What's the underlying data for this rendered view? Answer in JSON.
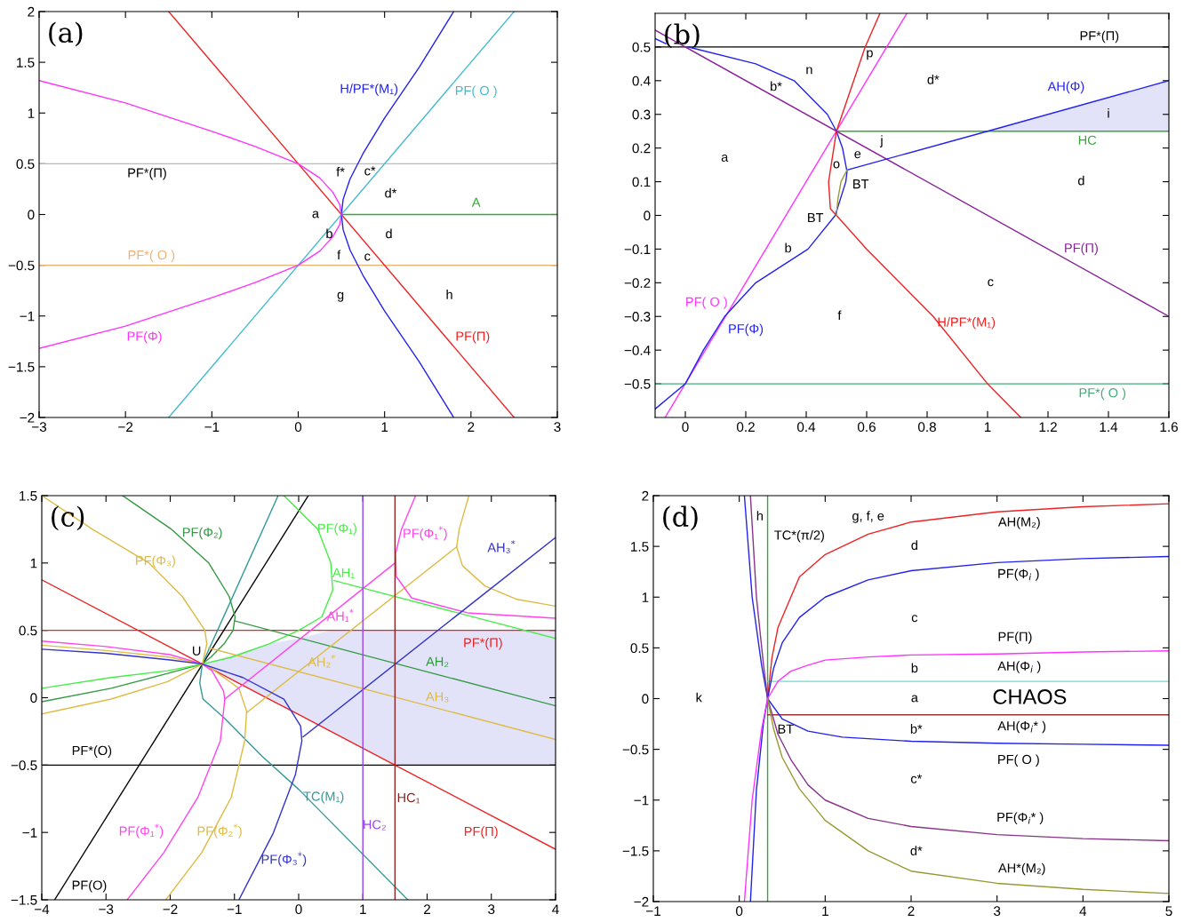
{
  "chart_data": [
    {
      "type": "line",
      "title": "(a)",
      "xlim": [
        -3,
        3
      ],
      "ylim": [
        -2,
        2
      ],
      "xticks": [
        -3,
        -2,
        -1,
        0,
        1,
        2,
        3
      ],
      "yticks": [
        -2,
        -1.5,
        -1,
        -0.5,
        0,
        0.5,
        1,
        1.5,
        2
      ],
      "series": [
        {
          "color": "#bbbbbb",
          "x": [
            -3,
            3
          ],
          "values": [
            0.5,
            0.5
          ]
        },
        {
          "name": "PF*( O )",
          "color": "#f2b070",
          "x": [
            -3,
            3
          ],
          "values": [
            -0.5,
            -0.5
          ]
        },
        {
          "name": "A",
          "color": "#33aa33",
          "x": [
            0.5,
            3
          ],
          "values": [
            0,
            0
          ]
        },
        {
          "name": "PF(Π)",
          "color": "#ee2222",
          "x": [
            -1.5,
            2.5
          ],
          "values": [
            2,
            -2
          ]
        },
        {
          "name": "PF( O )",
          "color": "#44bbcc",
          "x": [
            -1.5,
            2.5
          ],
          "values": [
            -2,
            2
          ]
        },
        {
          "name": "H/PF*(M₁)",
          "color": "#2222ee",
          "x": [
            1.8,
            1.4,
            1.0,
            0.75,
            0.6,
            0.52,
            0.5,
            0.52,
            0.6,
            0.75,
            1.0,
            1.4,
            1.8
          ],
          "values": [
            2,
            1.45,
            0.95,
            0.6,
            0.35,
            0.15,
            0,
            -0.15,
            -0.35,
            -0.6,
            -0.95,
            -1.45,
            -2
          ]
        },
        {
          "name": "PF(Φ)",
          "color": "#ff33ff",
          "x": [
            -3,
            -2,
            -1,
            -0.5,
            0,
            0.25,
            0.4,
            0.48,
            0.5,
            0.48,
            0.4,
            0.25,
            0,
            -0.5,
            -1,
            -2,
            -3
          ],
          "values": [
            1.32,
            1.1,
            0.82,
            0.67,
            0.5,
            0.36,
            0.22,
            0.1,
            0,
            -0.1,
            -0.22,
            -0.36,
            -0.5,
            -0.67,
            -0.82,
            -1.1,
            -1.32
          ]
        }
      ],
      "annotations": [
        "PF*(Π)",
        "f*",
        "c*",
        "d*",
        "a",
        "b",
        "d",
        "f",
        "c",
        "g",
        "h"
      ]
    },
    {
      "type": "line",
      "title": "(b)",
      "xlim": [
        -0.1,
        1.6
      ],
      "ylim": [
        -0.6,
        0.6
      ],
      "xticks": [
        0,
        0.2,
        0.4,
        0.6,
        0.8,
        1,
        1.2,
        1.4,
        1.6
      ],
      "yticks": [
        -0.5,
        -0.4,
        -0.3,
        -0.2,
        -0.1,
        0,
        0.1,
        0.2,
        0.3,
        0.4,
        0.5
      ],
      "series": [
        {
          "name": "PF*(Π)",
          "color": "#000000",
          "x": [
            -0.1,
            1.6
          ],
          "values": [
            0.5,
            0.5
          ]
        },
        {
          "name": "PF*( O )",
          "color": "#44aa77",
          "x": [
            -0.1,
            1.6
          ],
          "values": [
            -0.5,
            -0.5
          ]
        },
        {
          "name": "HC",
          "color": "#33aa33",
          "x": [
            0.5,
            1.6
          ],
          "values": [
            0.25,
            0.25
          ]
        },
        {
          "name": "PF(Π)",
          "color": "#882299",
          "x": [
            -0.1,
            1.6
          ],
          "values": [
            0.55,
            -0.3
          ]
        },
        {
          "name": "PF( O )",
          "color": "#ff33ff",
          "x": [
            -0.067,
            0.733
          ],
          "values": [
            -0.6,
            0.6
          ]
        },
        {
          "name": "PF(Φ)",
          "color": "#2222ee",
          "x": [
            -0.1,
            0,
            0.06,
            0.13,
            0.233,
            0.406,
            0.496,
            0.531,
            0.535,
            0.52,
            0.5,
            0.47,
            0.36,
            0.233,
            0.01
          ],
          "values": [
            -0.575,
            -0.5,
            -0.4,
            -0.3,
            -0.2,
            -0.1,
            0,
            0.1,
            0.13,
            0.2,
            0.25,
            0.3,
            0.4,
            0.45,
            0.5
          ]
        },
        {
          "color": "#2222ee",
          "x": [
            -0.1,
            -0.065
          ],
          "values": [
            0.525,
            0.51
          ]
        },
        {
          "name": "AH(Φ)",
          "color": "#2222ee",
          "x": [
            0.535,
            1.0,
            1.6
          ],
          "values": [
            0.135,
            0.25,
            0.4
          ],
          "lower": [
            null,
            0.25,
            0.25
          ],
          "upper": [
            null,
            0.25,
            0.4
          ]
        },
        {
          "name": "H/PF*(M₁)",
          "color": "#ee2222",
          "x": [
            0.644,
            0.595,
            0.5,
            0.474,
            0.48,
            0.5,
            0.6,
            0.82,
            1.0,
            1.11
          ],
          "values": [
            0.6,
            0.5,
            0.25,
            0.1,
            0.02,
            0,
            -0.1,
            -0.3,
            -0.5,
            -0.6
          ]
        },
        {
          "color": "#999933",
          "x": [
            0.535,
            0.515,
            0.505,
            0.5
          ],
          "values": [
            0.135,
            0.1,
            0.05,
            0
          ]
        }
      ],
      "annotations": [
        "n",
        "p",
        "b*",
        "d*",
        "i",
        "a",
        "j",
        "e",
        "o",
        "BT",
        "d",
        "BT",
        "b",
        "c",
        "f"
      ]
    },
    {
      "type": "line",
      "title": "(c)",
      "xlim": [
        -4,
        4
      ],
      "ylim": [
        -1.5,
        1.5
      ],
      "xticks": [
        -4,
        -3,
        -2,
        -1,
        0,
        1,
        2,
        3,
        4
      ],
      "yticks": [
        -1.5,
        -1,
        -0.5,
        0,
        0.5,
        1,
        1.5
      ],
      "series": [
        {
          "name": "PF*(Π)",
          "color": "#ee2222",
          "x": [
            -4,
            4
          ],
          "values": [
            0.5,
            0.5
          ]
        },
        {
          "name": "PF*(O)",
          "color": "#000000",
          "x": [
            -4,
            4
          ],
          "values": [
            -0.5,
            -0.5
          ]
        },
        {
          "name": "PF(Π)",
          "color": "#ee2222",
          "x": [
            -4,
            -1.5,
            -1.0,
            -0.46,
            0,
            0.5,
            1.0,
            1.5,
            4
          ],
          "values": [
            0.875,
            0.25,
            0.125,
            -0.01,
            -0.125,
            -0.25,
            -0.375,
            -0.5,
            -1.125
          ],
          "lower": [
            null,
            0.25,
            0.125,
            -0.01,
            -0.125,
            -0.25,
            -0.375,
            -0.5,
            -0.5
          ],
          "upper": [
            null,
            0.25,
            0.32,
            0.4,
            0.44,
            0.5,
            0.5,
            0.5,
            0.5
          ]
        },
        {
          "name": "PF(O)",
          "color": "#000000",
          "x": [
            -3.8,
            0.15
          ],
          "values": [
            -1.5,
            1.5
          ]
        },
        {
          "name": "TC(M₁)",
          "color": "#339999",
          "x": [
            -0.32,
            -1.5,
            -1.54,
            -1.49,
            -1.16,
            -0.58,
            0.0,
            1.7
          ],
          "values": [
            1.5,
            0.25,
            0.11,
            -0.01,
            -0.15,
            -0.43,
            -0.68,
            -1.5
          ]
        },
        {
          "name": "PF(Φ₂)",
          "color": "#339944",
          "x": [
            -4,
            -2.92,
            -2.04,
            -1.5,
            -1.37,
            -1.16,
            -1.02,
            -0.99,
            -1.08,
            -1.4,
            -1.98,
            -2.74
          ],
          "values": [
            -0.03,
            0.07,
            0.18,
            0.25,
            0.3,
            0.4,
            0.5,
            0.6,
            0.75,
            1.0,
            1.25,
            1.5
          ]
        },
        {
          "name": "AH₂",
          "color": "#339944",
          "x": [
            -0.99,
            4
          ],
          "values": [
            0.57,
            -0.06
          ]
        },
        {
          "name": "PF(Φ₁)",
          "color": "#44ee44",
          "x": [
            -4,
            -2.92,
            -2.04,
            -1.5,
            -1.05,
            -0.46,
            0.0,
            0.36,
            0.53,
            0.5,
            0.3,
            -0.23
          ],
          "values": [
            0.07,
            0.15,
            0.2,
            0.25,
            0.3,
            0.4,
            0.5,
            0.6,
            0.8,
            1.0,
            1.25,
            1.5
          ]
        },
        {
          "name": "AH₁",
          "color": "#44ee44",
          "x": [
            0.55,
            4
          ],
          "values": [
            0.87,
            0.44
          ]
        },
        {
          "name": "PF(Φ₃)",
          "color": "#ddbb44",
          "x": [
            -4,
            -3.21,
            -2.33,
            -1.81,
            -1.46,
            -1.43,
            -1.5,
            -2.04,
            -2.92,
            -4
          ],
          "values": [
            1.5,
            1.25,
            1.0,
            0.75,
            0.5,
            0.4,
            0.25,
            0.12,
            -0.01,
            -0.12
          ]
        },
        {
          "name": "PF(Φ₂$^{*}$)",
          "color": "#ddbb44",
          "x": [
            -4,
            -3,
            -2,
            -1.5,
            -1.34,
            -0.93,
            -0.81,
            -0.84,
            -1.05,
            -1.51,
            -2.07
          ],
          "values": [
            0.39,
            0.35,
            0.3,
            0.25,
            0.21,
            0.07,
            -0.1,
            -0.32,
            -0.74,
            -1.15,
            -1.5
          ]
        },
        {
          "name": "AH₃",
          "color": "#ddbb44",
          "x": [
            -1.4,
            4
          ],
          "values": [
            0.37,
            -0.31
          ]
        },
        {
          "name": "AH₂$^{*}$",
          "color": "#ddbb44",
          "x": [
            -0.81,
            2.46
          ],
          "values": [
            -0.11,
            1.12
          ]
        },
        {
          "color": "#ddbb44",
          "x": [
            2.65,
            2.5,
            2.46,
            2.55,
            2.9,
            3.4,
            4
          ],
          "values": [
            1.5,
            1.25,
            1.12,
            0.98,
            0.83,
            0.73,
            0.68
          ]
        },
        {
          "name": "PF(Φ₁$^{*}$)",
          "color": "#ff44ee",
          "x": [
            -4,
            -3,
            -2,
            -1.5,
            -1.35,
            -1.17,
            -1.15,
            -1.22,
            -1.57,
            -2.1,
            -2.67
          ],
          "values": [
            0.42,
            0.38,
            0.32,
            0.25,
            0.2,
            0.05,
            -0.01,
            -0.32,
            -0.74,
            -1.15,
            -1.5
          ]
        },
        {
          "name": "AH₁$^{*}$",
          "color": "#ff44ee",
          "x": [
            -1.15,
            1.5
          ],
          "values": [
            -0.01,
            1.0
          ]
        },
        {
          "name": "PF(Φ₁$^{*}$)",
          "color": "#ff44ee",
          "x": [
            1.82,
            1.6,
            1.51,
            1.52,
            1.76,
            2.63,
            4
          ],
          "values": [
            1.5,
            1.25,
            1.07,
            0.9,
            0.74,
            0.63,
            0.59
          ]
        },
        {
          "name": "PF(Φ₃$^{*}$)",
          "color": "#3333cc",
          "x": [
            -4,
            -3,
            -2,
            -1.5,
            -0.87,
            -0.23,
            0.03,
            0.05,
            -0.05,
            -0.4,
            -0.93
          ],
          "values": [
            0.36,
            0.33,
            0.28,
            0.25,
            0.15,
            -0.01,
            -0.21,
            -0.32,
            -0.57,
            -1.01,
            -1.5
          ]
        },
        {
          "name": "AH₃$^{*}$",
          "color": "#3333cc",
          "x": [
            0.07,
            4
          ],
          "values": [
            -0.29,
            1.19
          ]
        },
        {
          "name": "HC₂",
          "color": "#9944ee",
          "x": [
            1,
            1
          ],
          "values": [
            -1.5,
            1.5
          ]
        },
        {
          "name": "HC₁",
          "color": "#882222",
          "x": [
            1.5,
            1.5
          ],
          "values": [
            -1.5,
            1.5
          ]
        }
      ],
      "annotations": [
        "U"
      ]
    },
    {
      "type": "line",
      "title": "(d)",
      "xlim": [
        -1,
        5
      ],
      "ylim": [
        -2,
        2
      ],
      "xticks": [
        -1,
        0,
        1,
        2,
        3,
        4,
        5
      ],
      "yticks": [
        -2,
        -1.5,
        -1,
        -0.5,
        0,
        0.5,
        1,
        1.5,
        2
      ],
      "series": [
        {
          "color": "#33aa33",
          "x": [
            0.33,
            0.33
          ],
          "values": [
            -2,
            2
          ]
        },
        {
          "color": "#66ddcc",
          "x": [
            0.33,
            5
          ],
          "values": [
            0.17,
            0.17
          ]
        },
        {
          "color": "#993333",
          "x": [
            0.33,
            5
          ],
          "values": [
            -0.16,
            -0.16
          ]
        },
        {
          "color": "#ee2222",
          "x": [
            0.33,
            0.38,
            0.45,
            0.55,
            0.7,
            1.0,
            1.5,
            2.0,
            3.0,
            4.0,
            5.0
          ],
          "values": [
            0,
            0.4,
            0.7,
            0.9,
            1.2,
            1.42,
            1.62,
            1.74,
            1.84,
            1.89,
            1.92
          ]
        },
        {
          "color": "#2222ee",
          "x": [
            0.06,
            0.15,
            0.26,
            0.33,
            0.5,
            0.8,
            1.2,
            2,
            3,
            4,
            5
          ],
          "values": [
            2,
            1.0,
            0.33,
            0,
            -0.2,
            -0.32,
            -0.38,
            -0.42,
            -0.44,
            -0.45,
            -0.46
          ]
        },
        {
          "color": "#2222ee",
          "x": [
            0.13,
            0.2,
            0.28,
            0.33,
            0.4,
            0.5,
            0.7,
            1.0,
            1.5,
            2,
            3,
            4,
            5
          ],
          "values": [
            -2,
            -0.9,
            -0.25,
            0,
            0.3,
            0.55,
            0.8,
            1.0,
            1.17,
            1.26,
            1.34,
            1.38,
            1.4
          ]
        },
        {
          "color": "#883388",
          "x": [
            0.13,
            0.2,
            0.28,
            0.33,
            0.45,
            0.6,
            0.8,
            1.0,
            1.5,
            2,
            3,
            4,
            5
          ],
          "values": [
            2,
            1.0,
            0.35,
            0,
            -0.35,
            -0.6,
            -0.85,
            -1.0,
            -1.18,
            -1.26,
            -1.34,
            -1.38,
            -1.4
          ]
        },
        {
          "color": "#ff33ff",
          "x": [
            0.06,
            0.15,
            0.26,
            0.33,
            0.45,
            0.6,
            0.8,
            1.0,
            1.5,
            2,
            3,
            4,
            5
          ],
          "values": [
            -2,
            -1.0,
            -0.3,
            0,
            0.17,
            0.27,
            0.33,
            0.38,
            0.41,
            0.43,
            0.44,
            0.46,
            0.47
          ]
        },
        {
          "color": "#999933",
          "x": [
            0.33,
            0.4,
            0.5,
            0.7,
            1.0,
            1.5,
            2,
            3,
            4,
            5
          ],
          "values": [
            0,
            -0.3,
            -0.58,
            -0.89,
            -1.2,
            -1.5,
            -1.7,
            -1.82,
            -1.88,
            -1.92
          ]
        }
      ],
      "annotations": [
        "h",
        "g, f, e",
        "TC*(π/2)",
        "AH(M₂)",
        "d",
        "PF(Φ$_{i}$ )",
        "c",
        "PF(Π)",
        "b",
        "AH(Φ$_{i}$ )",
        "k",
        "a",
        "CHAOS",
        "BT",
        "b*",
        "AH(Φ$_{i}$* )",
        "PF( O )",
        "c*",
        "PF(Φ$_{i}$* )",
        "d*",
        "AH*(M₂)"
      ]
    }
  ]
}
